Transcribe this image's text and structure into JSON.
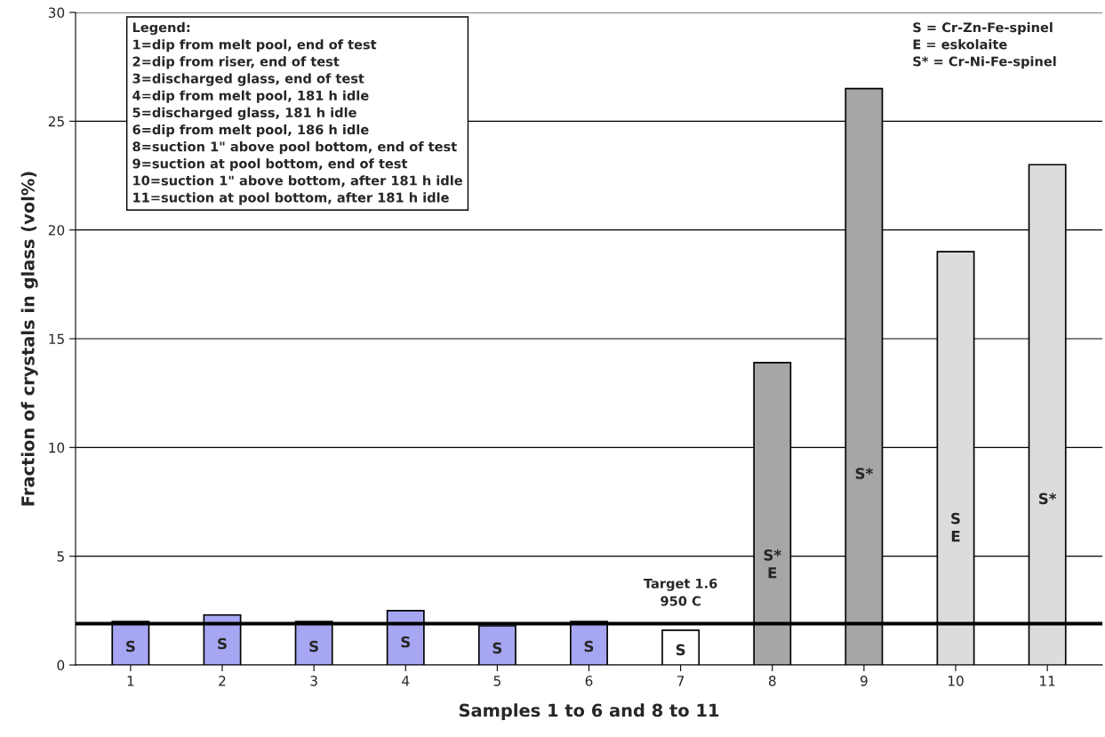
{
  "chart_data": {
    "type": "bar",
    "xlabel": "Samples 1 to 6 and 8 to 11",
    "ylabel": "Fraction of crystals in glass (vol%)",
    "categories": [
      "1",
      "2",
      "3",
      "4",
      "5",
      "6",
      "7",
      "8",
      "9",
      "10",
      "11"
    ],
    "values": [
      2.0,
      2.3,
      2.0,
      2.5,
      1.8,
      2.0,
      1.6,
      13.9,
      26.5,
      19.0,
      23.0
    ],
    "colors": [
      "#9999ff",
      "#9999ff",
      "#9999ff",
      "#9999ff",
      "#9999ff",
      "#9999ff",
      "#ffffff",
      "#a6a6a6",
      "#a6a6a6",
      "#dcdcdc",
      "#dcdcdc"
    ],
    "ylim": [
      0,
      30
    ],
    "yticks": [
      0,
      5,
      10,
      15,
      20,
      25,
      30
    ],
    "grid": "y",
    "ref_lines": [
      {
        "axis": "y",
        "value": 1.9,
        "label": "Target 1.6\n950 C",
        "color": "#000000"
      }
    ],
    "annotations": [
      "Legend:\n1=dip from melt pool, end of test\n2=dip from riser, end of test\n3=discharged glass, end of test\n4=dip from melt pool, 181 h idle\n5=discharged glass, 181 h idle\n6=dip from melt pool, 186 h idle\n8=suction 1\" above pool bottom, end of test\n9=suction at pool bottom, end of test\n10=suction 1\" above bottom, after 181 h idle\n11=suction at pool bottom, after 181 h idle",
      "S = Cr-Zn-Fe-spinel\nE = eskolaite\nS* = Cr-Ni-Fe-spinel"
    ],
    "value_labels": [
      "S",
      "S",
      "S",
      "S",
      "S",
      "S",
      "S",
      "S*\nE",
      "S*",
      "S\nE",
      "S*"
    ]
  }
}
